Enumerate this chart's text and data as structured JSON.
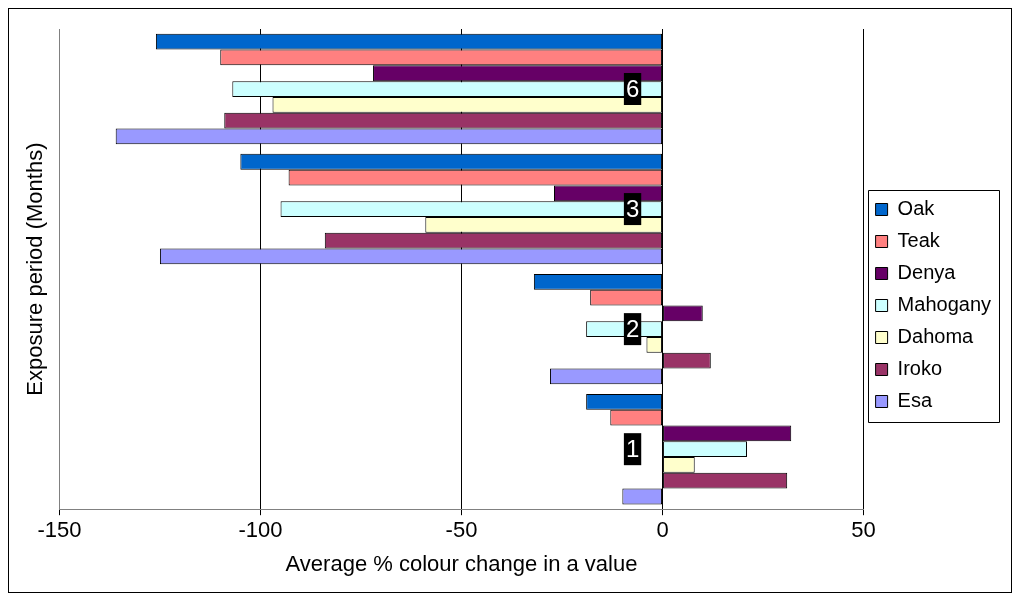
{
  "chart_data": {
    "type": "bar",
    "orientation": "horizontal",
    "xlabel": "Average % colour change in a value",
    "ylabel": "Exposure period (Months)",
    "categories": [
      "6",
      "3",
      "2",
      "1"
    ],
    "series": [
      {
        "name": "Oak",
        "color": "#0066cc",
        "values": [
          -126,
          -105,
          -32,
          -19
        ]
      },
      {
        "name": "Teak",
        "color": "#ff8080",
        "values": [
          -110,
          -93,
          -18,
          -13
        ]
      },
      {
        "name": "Denya",
        "color": "#660066",
        "values": [
          -72,
          -27,
          10,
          32
        ]
      },
      {
        "name": "Mahogany",
        "color": "#ccffff",
        "values": [
          -107,
          -95,
          -19,
          21
        ]
      },
      {
        "name": "Dahoma",
        "color": "#ffffcc",
        "values": [
          -97,
          -59,
          -4,
          8
        ]
      },
      {
        "name": "Iroko",
        "color": "#993366",
        "values": [
          -109,
          -84,
          12,
          31
        ]
      },
      {
        "name": "Esa",
        "color": "#9999ff",
        "values": [
          -136,
          -125,
          -28,
          -10
        ]
      }
    ],
    "xlim": [
      -150,
      50
    ],
    "xticks": [
      -150,
      -100,
      -50,
      0,
      50
    ],
    "grid": "x",
    "legend": "right"
  }
}
